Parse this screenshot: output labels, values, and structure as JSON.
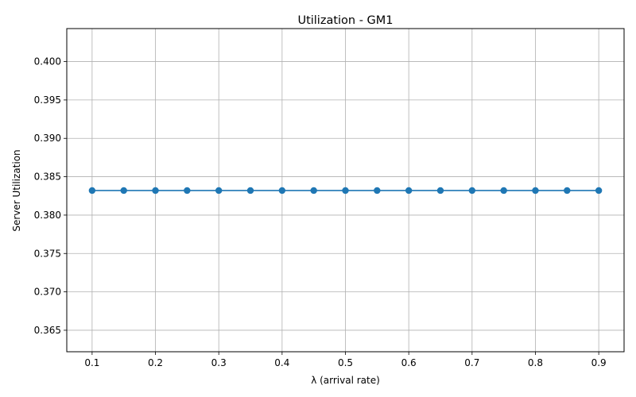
{
  "chart_data": {
    "type": "line",
    "title": "Utilization - GM1",
    "xlabel": "λ (arrival rate)",
    "ylabel": "Server Utilization",
    "xlim": [
      0.06,
      0.94
    ],
    "ylim": [
      0.3622,
      0.4043
    ],
    "xticks": [
      "0.1",
      "0.2",
      "0.3",
      "0.4",
      "0.5",
      "0.6",
      "0.7",
      "0.8",
      "0.9"
    ],
    "yticks": [
      "0.365",
      "0.370",
      "0.375",
      "0.380",
      "0.385",
      "0.390",
      "0.395",
      "0.400"
    ],
    "grid": true,
    "series": [
      {
        "color": "#1f77b4",
        "marker": "circle",
        "x": [
          0.1,
          0.15,
          0.2,
          0.25,
          0.3,
          0.35,
          0.4,
          0.45,
          0.5,
          0.55,
          0.6,
          0.65,
          0.7,
          0.75,
          0.8,
          0.85,
          0.9
        ],
        "y": [
          0.3832,
          0.3832,
          0.3832,
          0.3832,
          0.3832,
          0.3832,
          0.3832,
          0.3832,
          0.3832,
          0.3832,
          0.3832,
          0.3832,
          0.3832,
          0.3832,
          0.3832,
          0.3832,
          0.3832
        ]
      }
    ]
  }
}
